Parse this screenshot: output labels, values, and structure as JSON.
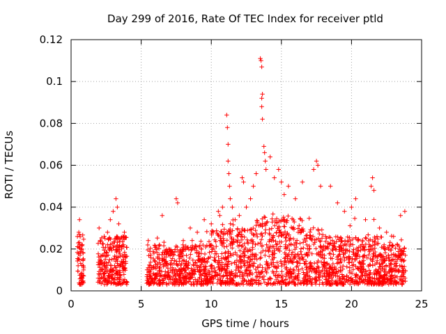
{
  "chart_data": {
    "type": "scatter",
    "title": "Day 299 of 2016, Rate Of TEC Index for receiver ptld",
    "xlabel": "GPS time / hours",
    "ylabel": "ROTI / TECUs",
    "xlim": [
      0,
      25
    ],
    "ylim": [
      0,
      0.12
    ],
    "x_ticks": [
      0,
      5,
      10,
      15,
      20,
      25
    ],
    "x_tick_labels": [
      "0",
      "5",
      "10",
      "15",
      "20",
      "25"
    ],
    "y_ticks": [
      0,
      0.02,
      0.04,
      0.06,
      0.08,
      0.1,
      0.12
    ],
    "y_tick_labels": [
      "0",
      "0.02",
      "0.04",
      "0.06",
      "0.08",
      "0.1",
      "0.12"
    ],
    "grid": true,
    "marker": "+",
    "color": "#ff0000",
    "data_gaps_hours": [
      [
        0.9,
        1.9
      ],
      [
        4.0,
        5.4
      ]
    ],
    "series": [
      {
        "name": "ROTI",
        "points": [
          [
            0.5,
            0.012
          ],
          [
            0.55,
            0.028
          ],
          [
            0.6,
            0.034
          ],
          [
            0.65,
            0.018
          ],
          [
            0.7,
            0.008
          ],
          [
            0.75,
            0.022
          ],
          [
            0.8,
            0.006
          ],
          [
            0.85,
            0.015
          ],
          [
            0.9,
            0.011
          ],
          [
            2.0,
            0.03
          ],
          [
            2.1,
            0.024
          ],
          [
            2.2,
            0.01
          ],
          [
            2.4,
            0.018
          ],
          [
            2.6,
            0.028
          ],
          [
            2.8,
            0.034
          ],
          [
            3.0,
            0.038
          ],
          [
            3.2,
            0.044
          ],
          [
            3.3,
            0.04
          ],
          [
            3.4,
            0.032
          ],
          [
            3.6,
            0.02
          ],
          [
            3.8,
            0.028
          ],
          [
            3.9,
            0.014
          ],
          [
            5.5,
            0.024
          ],
          [
            5.6,
            0.006
          ],
          [
            6.0,
            0.014
          ],
          [
            6.3,
            0.022
          ],
          [
            6.5,
            0.036
          ],
          [
            6.8,
            0.012
          ],
          [
            7.5,
            0.044
          ],
          [
            7.6,
            0.042
          ],
          [
            8.0,
            0.024
          ],
          [
            8.5,
            0.03
          ],
          [
            9.0,
            0.028
          ],
          [
            9.5,
            0.034
          ],
          [
            10.0,
            0.032
          ],
          [
            10.5,
            0.038
          ],
          [
            10.8,
            0.04
          ],
          [
            11.1,
            0.084
          ],
          [
            11.15,
            0.078
          ],
          [
            11.2,
            0.07
          ],
          [
            11.2,
            0.062
          ],
          [
            11.25,
            0.056
          ],
          [
            11.3,
            0.05
          ],
          [
            11.35,
            0.044
          ],
          [
            11.5,
            0.04
          ],
          [
            11.7,
            0.034
          ],
          [
            12.0,
            0.036
          ],
          [
            12.2,
            0.054
          ],
          [
            12.3,
            0.052
          ],
          [
            12.5,
            0.04
          ],
          [
            12.8,
            0.044
          ],
          [
            13.0,
            0.05
          ],
          [
            13.2,
            0.056
          ],
          [
            13.5,
            0.111
          ],
          [
            13.55,
            0.11
          ],
          [
            13.6,
            0.107
          ],
          [
            13.65,
            0.094
          ],
          [
            13.6,
            0.092
          ],
          [
            13.6,
            0.088
          ],
          [
            13.65,
            0.082
          ],
          [
            13.75,
            0.069
          ],
          [
            13.8,
            0.066
          ],
          [
            13.85,
            0.062
          ],
          [
            13.9,
            0.058
          ],
          [
            14.2,
            0.064
          ],
          [
            14.5,
            0.054
          ],
          [
            14.8,
            0.058
          ],
          [
            15.0,
            0.052
          ],
          [
            15.2,
            0.046
          ],
          [
            15.5,
            0.05
          ],
          [
            16.0,
            0.044
          ],
          [
            16.5,
            0.052
          ],
          [
            17.3,
            0.058
          ],
          [
            17.5,
            0.062
          ],
          [
            17.6,
            0.06
          ],
          [
            17.8,
            0.05
          ],
          [
            18.5,
            0.05
          ],
          [
            19.0,
            0.042
          ],
          [
            19.5,
            0.038
          ],
          [
            20.0,
            0.04
          ],
          [
            20.3,
            0.044
          ],
          [
            21.0,
            0.034
          ],
          [
            21.4,
            0.05
          ],
          [
            21.5,
            0.054
          ],
          [
            21.6,
            0.048
          ],
          [
            22.0,
            0.03
          ],
          [
            22.5,
            0.028
          ],
          [
            23.0,
            0.026
          ],
          [
            23.5,
            0.036
          ],
          [
            23.8,
            0.038
          ]
        ]
      }
    ]
  }
}
